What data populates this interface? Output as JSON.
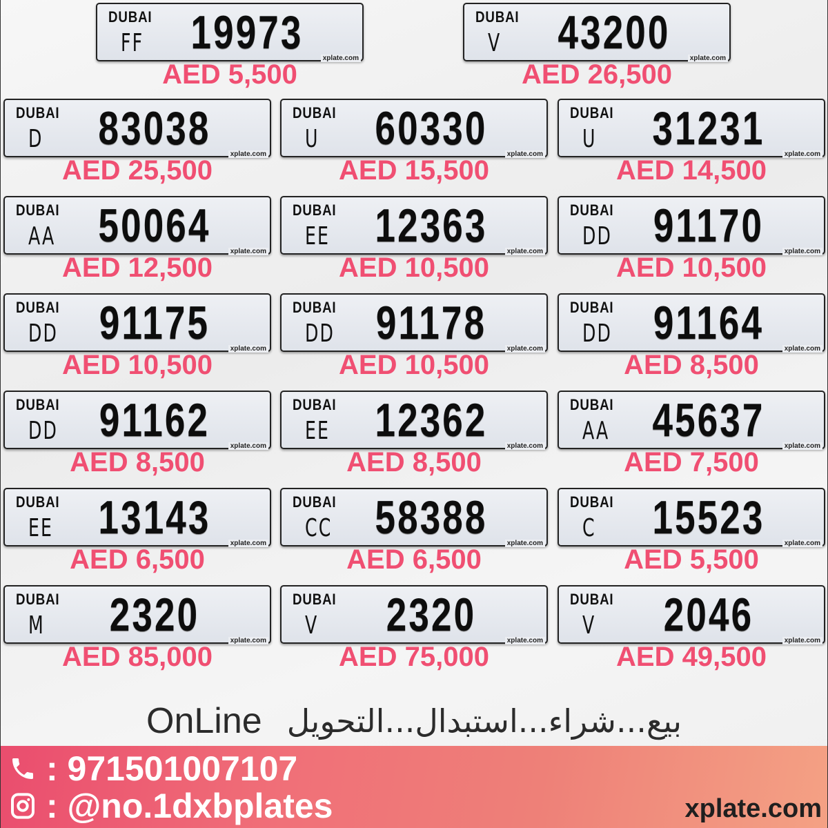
{
  "plate_logo": "DUBAI",
  "plate_watermark": "xplate.com",
  "colors": {
    "price": "#f04f72",
    "banner_start": "#ea4d6e",
    "banner_end": "#f4a184"
  },
  "plates": [
    {
      "code": "FF",
      "number": "19973",
      "price": "AED 5,500"
    },
    {
      "code": "V",
      "number": "43200",
      "price": "AED 26,500"
    },
    {
      "code": "D",
      "number": "83038",
      "price": "AED 25,500"
    },
    {
      "code": "U",
      "number": "60330",
      "price": "AED 15,500"
    },
    {
      "code": "U",
      "number": "31231",
      "price": "AED 14,500"
    },
    {
      "code": "AA",
      "number": "50064",
      "price": "AED 12,500"
    },
    {
      "code": "EE",
      "number": "12363",
      "price": "AED 10,500"
    },
    {
      "code": "DD",
      "number": "91170",
      "price": "AED 10,500"
    },
    {
      "code": "DD",
      "number": "91175",
      "price": "AED 10,500"
    },
    {
      "code": "DD",
      "number": "91178",
      "price": "AED 10,500"
    },
    {
      "code": "DD",
      "number": "91164",
      "price": "AED 8,500"
    },
    {
      "code": "DD",
      "number": "91162",
      "price": "AED 8,500"
    },
    {
      "code": "EE",
      "number": "12362",
      "price": "AED 8,500"
    },
    {
      "code": "AA",
      "number": "45637",
      "price": "AED 7,500"
    },
    {
      "code": "EE",
      "number": "13143",
      "price": "AED 6,500"
    },
    {
      "code": "CC",
      "number": "58388",
      "price": "AED 6,500"
    },
    {
      "code": "C",
      "number": "15523",
      "price": "AED 5,500"
    },
    {
      "code": "M",
      "number": "2320",
      "price": "AED 85,000"
    },
    {
      "code": "V",
      "number": "2320",
      "price": "AED 75,000"
    },
    {
      "code": "V",
      "number": "2046",
      "price": "AED 49,500"
    }
  ],
  "tagline": {
    "english": "OnLine",
    "arabic": "بيع...شراء...استبدال...التحويل"
  },
  "contact": {
    "phone_icon": "phone-icon",
    "phone": ": 971501007107",
    "instagram_icon": "instagram-icon",
    "instagram": ": @no.1dxbplates",
    "website": "xplate.com"
  }
}
